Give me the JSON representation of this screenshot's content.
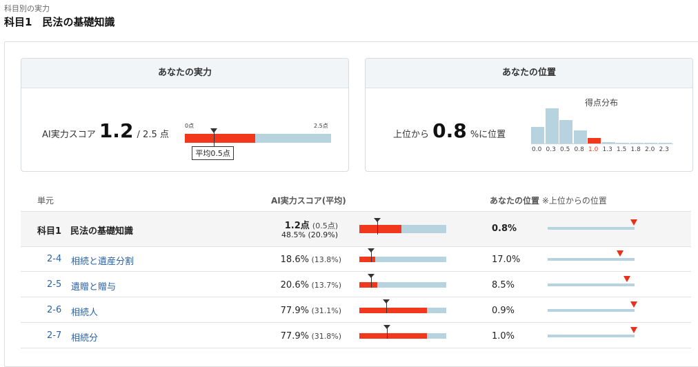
{
  "header": {
    "breadcrumb": "科目別の実力",
    "title": "科目1　民法の基礎知識"
  },
  "ability_card": {
    "heading": "あなたの実力",
    "score_label": "AI実力スコア",
    "score": "1.2",
    "score_max": "/ 2.5 点",
    "scale_min": "0点",
    "scale_max": "2.5点",
    "score_fraction": 0.48,
    "avg_fraction": 0.2,
    "avg_label": "平均0.5点"
  },
  "position_card": {
    "heading": "あなたの位置",
    "prefix": "上位から",
    "value": "0.8",
    "suffix": "%に位置",
    "histogram_title": "得点分布",
    "histogram_labels": [
      "0.0",
      "0.3",
      "0.5",
      "0.8",
      "1.0",
      "1.3",
      "1.5",
      "1.8",
      "2.0",
      "2.3"
    ],
    "histogram_values": [
      0.47,
      1.0,
      0.66,
      0.38,
      0.16,
      0.03,
      0.02,
      0.01,
      0.01,
      0.01
    ],
    "highlight_index": 4
  },
  "table": {
    "col_unit": "単元",
    "col_score": "AI実力スコア(平均)",
    "col_position": "あなたの位置",
    "col_position_note": "※上位からの位置",
    "summary": {
      "name": "科目1　民法の基礎知識",
      "score_points": "1.2点",
      "score_points_avg": "(0.5点)",
      "score_pct": "48.5%",
      "score_pct_avg": "(20.9%)",
      "fill": 0.485,
      "avg": 0.209,
      "position": "0.8%",
      "position_fraction": 0.992
    },
    "rows": [
      {
        "code": "2-4",
        "name": "相続と遺産分割",
        "pct": "18.6%",
        "avg": "(13.8%)",
        "fill": 0.186,
        "avg_frac": 0.138,
        "position": "17.0%",
        "position_fraction": 0.83
      },
      {
        "code": "2-5",
        "name": "遺贈と贈与",
        "pct": "20.6%",
        "avg": "(13.7%)",
        "fill": 0.206,
        "avg_frac": 0.137,
        "position": "8.5%",
        "position_fraction": 0.915
      },
      {
        "code": "2-6",
        "name": "相続人",
        "pct": "77.9%",
        "avg": "(31.1%)",
        "fill": 0.779,
        "avg_frac": 0.311,
        "position": "0.9%",
        "position_fraction": 0.991
      },
      {
        "code": "2-7",
        "name": "相続分",
        "pct": "77.9%",
        "avg": "(31.8%)",
        "fill": 0.779,
        "avg_frac": 0.318,
        "position": "1.0%",
        "position_fraction": 0.99
      }
    ]
  },
  "colors": {
    "accent_red": "#f2381c",
    "bar_blue": "#b6d3df",
    "link_blue": "#2a62a7",
    "marker_red": "#e8301a"
  }
}
